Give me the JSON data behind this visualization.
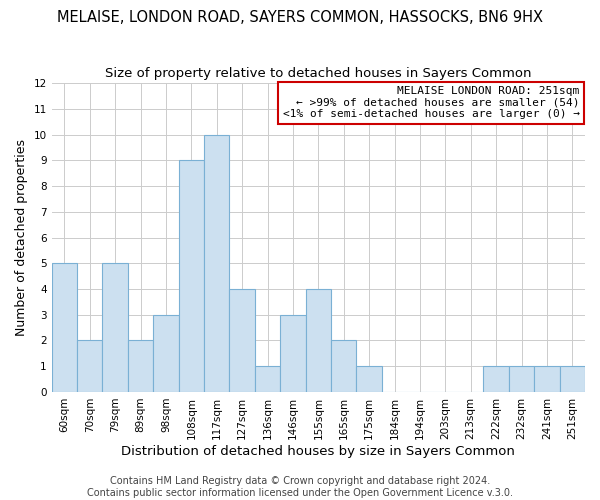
{
  "title": "MELAISE, LONDON ROAD, SAYERS COMMON, HASSOCKS, BN6 9HX",
  "subtitle": "Size of property relative to detached houses in Sayers Common",
  "xlabel": "Distribution of detached houses by size in Sayers Common",
  "ylabel": "Number of detached properties",
  "bar_labels": [
    "60sqm",
    "70sqm",
    "79sqm",
    "89sqm",
    "98sqm",
    "108sqm",
    "117sqm",
    "127sqm",
    "136sqm",
    "146sqm",
    "155sqm",
    "165sqm",
    "175sqm",
    "184sqm",
    "194sqm",
    "203sqm",
    "213sqm",
    "222sqm",
    "232sqm",
    "241sqm",
    "251sqm"
  ],
  "bar_values": [
    5,
    2,
    5,
    2,
    3,
    9,
    10,
    4,
    1,
    3,
    4,
    2,
    1,
    0,
    0,
    0,
    0,
    1,
    1,
    1,
    1
  ],
  "bar_color": "#cce0f0",
  "bar_edge_color": "#7ab0d4",
  "ylim": [
    0,
    12
  ],
  "yticks": [
    0,
    1,
    2,
    3,
    4,
    5,
    6,
    7,
    8,
    9,
    10,
    11,
    12
  ],
  "legend_title": "MELAISE LONDON ROAD: 251sqm",
  "legend_line1": "← >99% of detached houses are smaller (54)",
  "legend_line2": "<1% of semi-detached houses are larger (0) →",
  "legend_box_color": "#ffffff",
  "legend_border_color": "#cc0000",
  "footer_line1": "Contains HM Land Registry data © Crown copyright and database right 2024.",
  "footer_line2": "Contains public sector information licensed under the Open Government Licence v.3.0.",
  "grid_color": "#cccccc",
  "title_fontsize": 10.5,
  "subtitle_fontsize": 9.5,
  "xlabel_fontsize": 9.5,
  "ylabel_fontsize": 9,
  "tick_fontsize": 7.5,
  "footer_fontsize": 7,
  "legend_fontsize": 8
}
